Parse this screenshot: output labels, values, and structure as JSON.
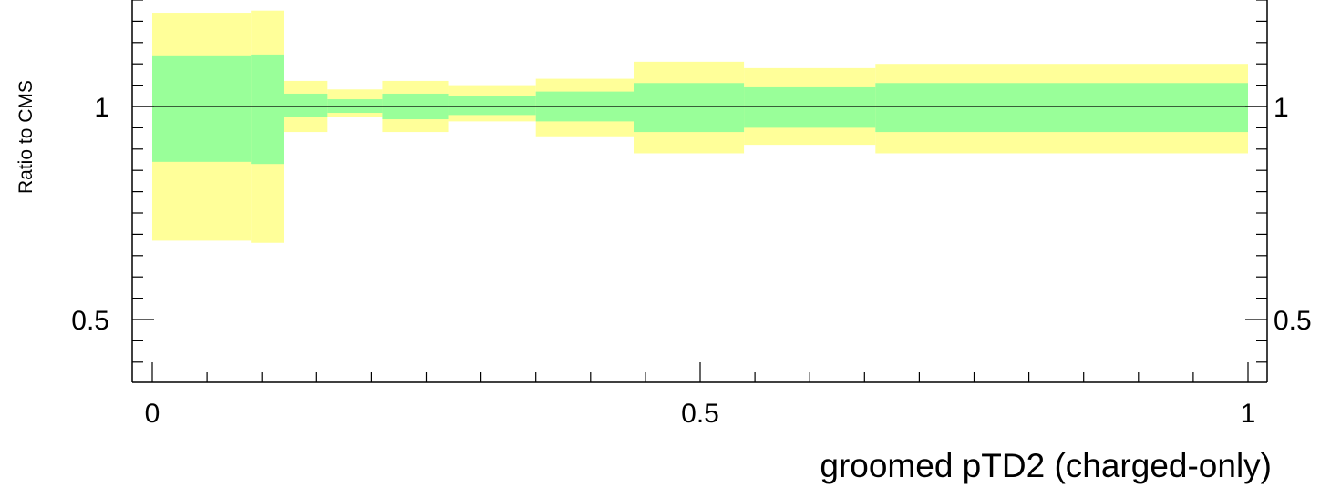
{
  "chart_data": {
    "type": "area",
    "title": "",
    "xlabel": "groomed pTD2 (charged-only)",
    "ylabel": "Ratio to CMS",
    "xlim": [
      -0.01,
      1.02
    ],
    "ylim": [
      0.36,
      1.25
    ],
    "x_ticks": [
      {
        "value": 0,
        "label": "0"
      },
      {
        "value": 0.5,
        "label": "0.5"
      },
      {
        "value": 1,
        "label": "1"
      }
    ],
    "y_ticks": [
      {
        "value": 0.5,
        "label": "0.5"
      },
      {
        "value": 1,
        "label": "1"
      }
    ],
    "reference_line": 1.0,
    "bin_edges": [
      0,
      0.09,
      0.12,
      0.16,
      0.21,
      0.27,
      0.35,
      0.44,
      0.54,
      0.66,
      1.0
    ],
    "series": [
      {
        "kind": "outer-band",
        "color": "#ffff99",
        "lower": [
          0.685,
          0.68,
          0.94,
          0.975,
          0.94,
          0.965,
          0.93,
          0.89,
          0.91,
          0.89,
          0.875
        ],
        "upper": [
          1.22,
          1.225,
          1.06,
          1.04,
          1.06,
          1.05,
          1.065,
          1.105,
          1.09,
          1.1,
          1.115
        ]
      },
      {
        "kind": "inner-band",
        "color": "#99ff99",
        "lower": [
          0.87,
          0.865,
          0.975,
          0.985,
          0.97,
          0.98,
          0.965,
          0.94,
          0.95,
          0.94,
          0.935
        ],
        "upper": [
          1.12,
          1.122,
          1.03,
          1.017,
          1.03,
          1.025,
          1.035,
          1.055,
          1.045,
          1.055,
          1.062
        ]
      }
    ]
  }
}
